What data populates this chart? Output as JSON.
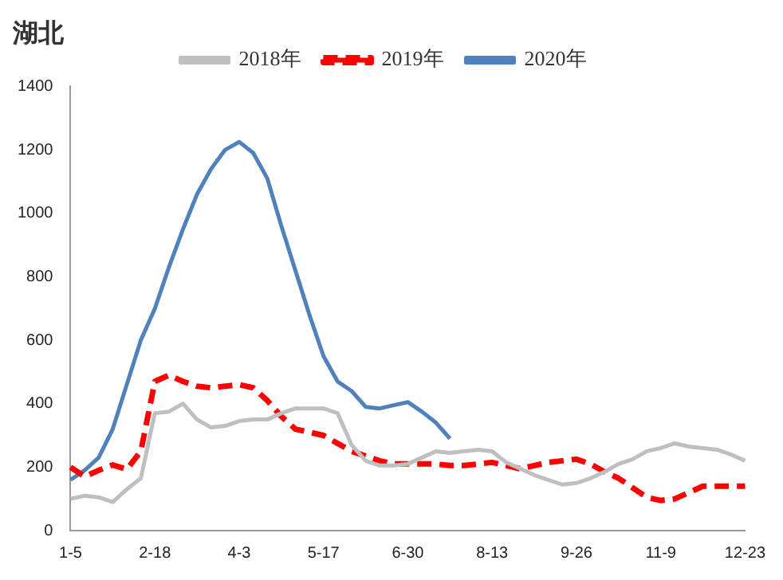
{
  "chart_data": {
    "type": "line",
    "title": "湖北",
    "categories": [
      "1-5",
      null,
      null,
      null,
      null,
      null,
      "2-18",
      null,
      null,
      null,
      null,
      null,
      "4-3",
      null,
      null,
      null,
      null,
      null,
      "5-17",
      null,
      null,
      null,
      null,
      null,
      "6-30",
      null,
      null,
      null,
      null,
      null,
      "8-13",
      null,
      null,
      null,
      null,
      null,
      "9-26",
      null,
      null,
      null,
      null,
      null,
      "11-9",
      null,
      null,
      null,
      null,
      null,
      "12-23"
    ],
    "series": [
      {
        "name": "2018年",
        "color": "#bfbfbf",
        "line_style": "solid",
        "values": [
          100,
          110,
          105,
          90,
          130,
          165,
          370,
          375,
          400,
          350,
          325,
          330,
          345,
          350,
          350,
          370,
          385,
          385,
          385,
          370,
          270,
          220,
          205,
          205,
          210,
          230,
          250,
          245,
          250,
          255,
          250,
          215,
          195,
          175,
          160,
          145,
          150,
          165,
          185,
          210,
          225,
          250,
          260,
          275,
          265,
          260,
          255,
          240,
          220
        ]
      },
      {
        "name": "2019年",
        "color": "#ff0000",
        "line_style": "dashed",
        "values": [
          200,
          170,
          190,
          207,
          193,
          250,
          470,
          490,
          470,
          455,
          450,
          455,
          460,
          450,
          410,
          360,
          320,
          310,
          300,
          275,
          250,
          235,
          220,
          210,
          210,
          210,
          210,
          205,
          205,
          210,
          215,
          205,
          195,
          205,
          215,
          220,
          225,
          210,
          185,
          165,
          135,
          105,
          95,
          100,
          120,
          140,
          140,
          140,
          140
        ]
      },
      {
        "name": "2020年",
        "color": "#4f81bd",
        "line_style": "solid",
        "values": [
          160,
          190,
          230,
          320,
          460,
          600,
          700,
          830,
          950,
          1060,
          1140,
          1200,
          1225,
          1190,
          1110,
          960,
          820,
          680,
          550,
          470,
          440,
          390,
          385,
          395,
          405,
          375,
          340,
          290,
          null,
          null,
          null,
          null,
          null,
          null,
          null,
          null,
          null,
          null,
          null,
          null,
          null,
          null,
          null,
          null,
          null,
          null,
          null,
          null,
          null
        ]
      }
    ],
    "ylim": [
      0,
      1400
    ],
    "yticks": [
      0,
      200,
      400,
      600,
      800,
      1000,
      1200,
      1400
    ],
    "grid": false,
    "legend": "top",
    "marker": "none"
  }
}
